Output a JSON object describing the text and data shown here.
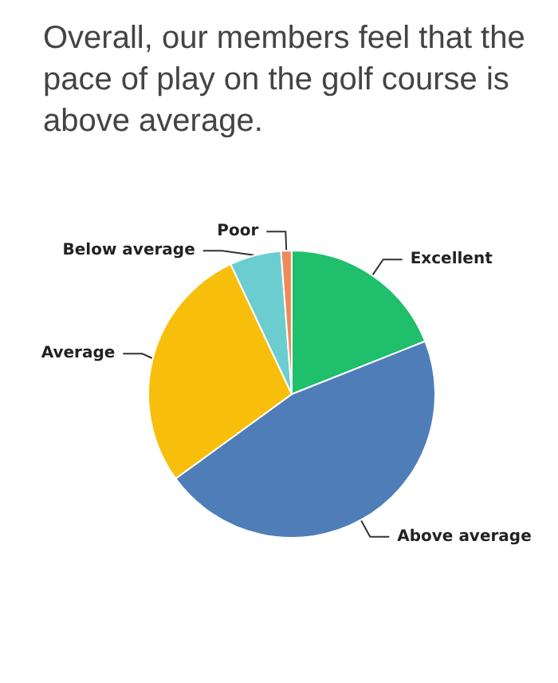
{
  "chart_data": {
    "type": "pie",
    "title": "Overall, our members feel that the pace of play on the golf course is above average.",
    "categories": [
      "Excellent",
      "Above average",
      "Average",
      "Below average",
      "Poor"
    ],
    "values": [
      19,
      46,
      28,
      5.8,
      1.2
    ],
    "colors": [
      "#1fbf6c",
      "#4f7db8",
      "#f7bf0b",
      "#6ccdd0",
      "#f08a5d"
    ],
    "legend": false
  }
}
